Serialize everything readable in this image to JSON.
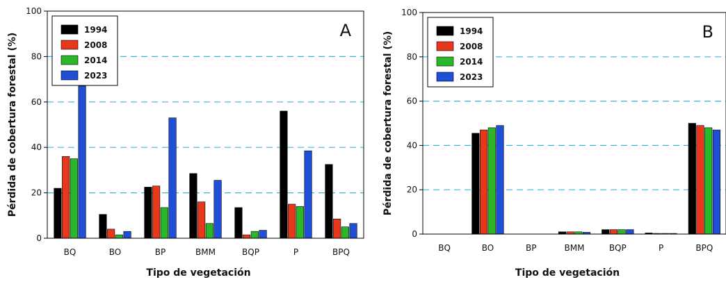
{
  "chart_data": [
    {
      "type": "bar",
      "panel_label": "A",
      "categories": [
        "BQ",
        "BO",
        "BP",
        "BMM",
        "BQP",
        "P",
        "BPQ"
      ],
      "series": [
        {
          "name": "1994",
          "color": "#000000",
          "values": [
            22,
            10.5,
            22.5,
            28.5,
            13.5,
            56,
            32.5
          ]
        },
        {
          "name": "2008",
          "color": "#e8381c",
          "values": [
            36,
            4,
            23,
            16,
            1.5,
            15,
            8.5
          ]
        },
        {
          "name": "2014",
          "color": "#2ab82a",
          "values": [
            35,
            1.5,
            13.5,
            6.5,
            3,
            14,
            5
          ]
        },
        {
          "name": "2023",
          "color": "#1f4fd6",
          "values": [
            67,
            3,
            53,
            25.5,
            3.5,
            38.5,
            6.5
          ]
        }
      ],
      "xlabel": "Tipo de vegetación",
      "ylabel": "Pérdida de cobertura forestal (%)",
      "ylim": [
        0,
        100
      ],
      "yticks": [
        0,
        20,
        40,
        60,
        80,
        100
      ],
      "grid": "dashed horizontal",
      "legend": "top-left"
    },
    {
      "type": "bar",
      "panel_label": "B",
      "categories": [
        "BQ",
        "BO",
        "BP",
        "BMM",
        "BQP",
        "P",
        "BPQ"
      ],
      "series": [
        {
          "name": "1994",
          "color": "#000000",
          "values": [
            0,
            45.5,
            0,
            1,
            2,
            0.5,
            50
          ]
        },
        {
          "name": "2008",
          "color": "#e8381c",
          "values": [
            0,
            47,
            0,
            1,
            2,
            0.3,
            49
          ]
        },
        {
          "name": "2014",
          "color": "#2ab82a",
          "values": [
            0,
            48,
            0,
            1,
            2,
            0.3,
            48
          ]
        },
        {
          "name": "2023",
          "color": "#1f4fd6",
          "values": [
            0,
            49,
            0,
            0.8,
            2,
            0.3,
            47
          ]
        }
      ],
      "xlabel": "Tipo de vegetación",
      "ylabel": "Pérdida de cobertura forestal (%)",
      "ylim": [
        0,
        100
      ],
      "yticks": [
        0,
        20,
        40,
        60,
        80,
        100
      ],
      "grid": "dashed horizontal",
      "legend": "top-left"
    }
  ]
}
